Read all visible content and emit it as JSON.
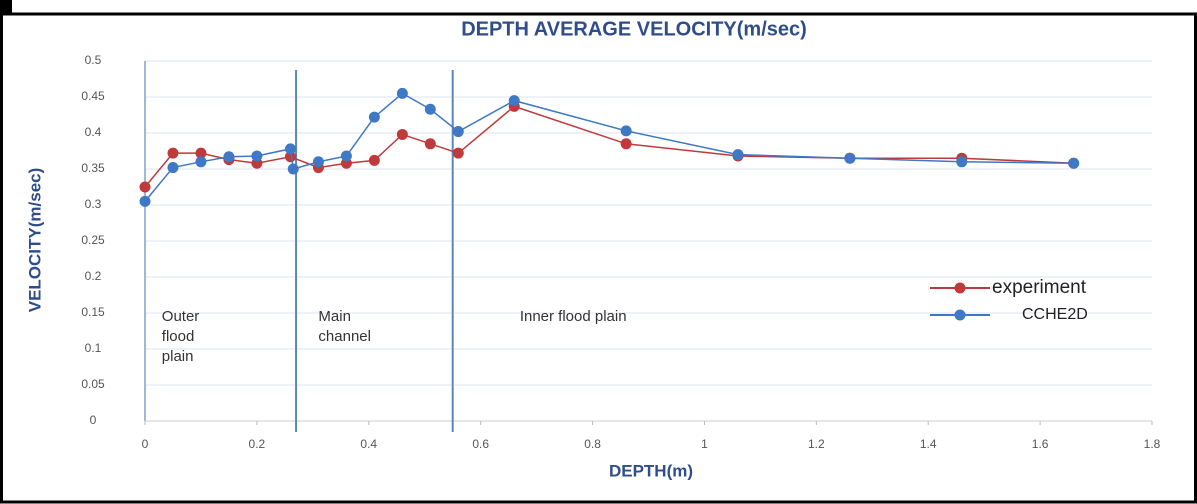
{
  "chart_data": {
    "type": "line",
    "title": "DEPTH AVERAGE VELOCITY(m/sec)",
    "x_label": "DEPTH(m)",
    "y_label": "VELOCITY(m/sec)",
    "xlim": [
      0,
      1.8
    ],
    "ylim": [
      0,
      0.5
    ],
    "xticks": [
      0,
      0.2,
      0.4,
      0.6,
      0.8,
      1,
      1.2,
      1.4,
      1.6,
      1.8
    ],
    "yticks": [
      0,
      0.05,
      0.1,
      0.15,
      0.2,
      0.25,
      0.3,
      0.35,
      0.4,
      0.45,
      0.5
    ],
    "grid": true,
    "legend": "right",
    "dividers": [
      0.27,
      0.55
    ],
    "annotations": [
      {
        "x": 0.03,
        "y": 0.15,
        "lines": [
          "Outer",
          "flood",
          "plain"
        ]
      },
      {
        "x": 0.31,
        "y": 0.15,
        "lines": [
          "Main",
          "channel"
        ]
      },
      {
        "x": 0.67,
        "y": 0.15,
        "lines": [
          "Inner flood plain"
        ]
      }
    ],
    "series": [
      {
        "name": "experiment",
        "color": "#c0393b",
        "x": [
          0,
          0.05,
          0.1,
          0.15,
          0.2,
          0.26,
          0.31,
          0.36,
          0.41,
          0.46,
          0.51,
          0.56,
          0.66,
          0.86,
          1.06,
          1.26,
          1.46,
          1.66
        ],
        "values": [
          0.325,
          0.372,
          0.372,
          0.363,
          0.358,
          0.367,
          0.352,
          0.358,
          0.362,
          0.398,
          0.385,
          0.372,
          0.437,
          0.385,
          0.368,
          0.365,
          0.365,
          0.358
        ]
      },
      {
        "name": "CCHE2D",
        "color": "#3f78c4",
        "x": [
          0,
          0.05,
          0.1,
          0.15,
          0.2,
          0.26,
          0.265,
          0.31,
          0.36,
          0.41,
          0.46,
          0.51,
          0.56,
          0.66,
          0.86,
          1.06,
          1.26,
          1.46,
          1.66
        ],
        "values": [
          0.305,
          0.352,
          0.36,
          0.367,
          0.368,
          0.378,
          0.35,
          0.36,
          0.368,
          0.422,
          0.455,
          0.433,
          0.402,
          0.445,
          0.403,
          0.37,
          0.365,
          0.36,
          0.358
        ]
      }
    ]
  }
}
